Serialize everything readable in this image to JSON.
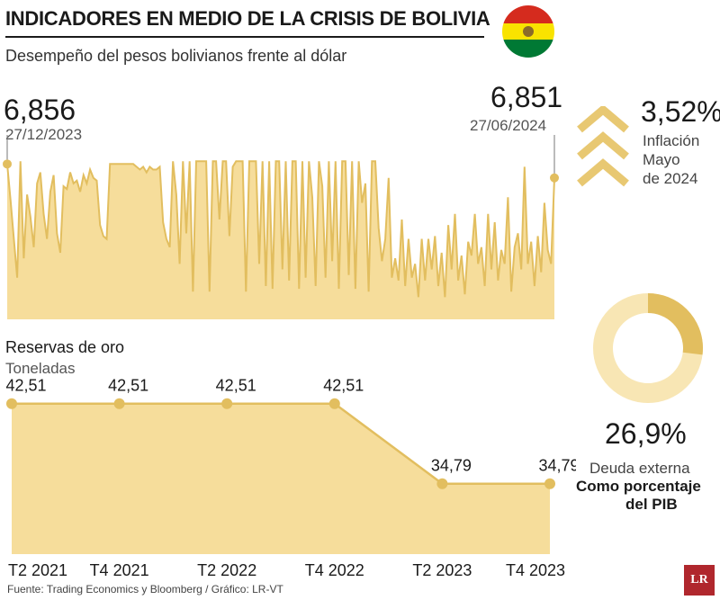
{
  "title": "INDICADORES EN MEDIO DE LA CRISIS DE BOLIVIA",
  "subtitle": "Desempeño del pesos bolivianos frente al dólar",
  "colors": {
    "fill": "#f6dd9b",
    "line": "#e2be5f",
    "dot": "#e2be5f",
    "donut_bg": "#f8e6b4",
    "donut_fg": "#e2be5f",
    "chevron": "#e8c872",
    "flag_red": "#d52b1e",
    "flag_yellow": "#f9e300",
    "flag_green": "#007934"
  },
  "icons": {
    "flag": "bolivia-flag-icon",
    "inflation": "chevron-up-triple-icon",
    "logo": "lr-logo"
  },
  "inflation": {
    "value": "3,52%",
    "label": [
      "Inflación",
      "Mayo",
      "de 2024"
    ]
  },
  "debt": {
    "value": "26,9%",
    "fraction": 0.269,
    "label1": "Deuda externa",
    "label2": "Como porcentaje",
    "label3": "del PIB"
  },
  "source": "Fuente: Trading Economics y Bloomberg / Gráfico: LR-VT",
  "logo_text": "LR",
  "chart_data": [
    {
      "type": "area",
      "title": "Desempeño del pesos bolivianos frente al dólar",
      "start": {
        "value": "6,856",
        "date": "27/12/2023"
      },
      "end": {
        "value": "6,851",
        "date": "27/06/2024"
      },
      "ylim": [
        6.8,
        6.86
      ],
      "values": [
        6.856,
        6.843,
        6.829,
        6.815,
        6.857,
        6.822,
        6.845,
        6.837,
        6.826,
        6.849,
        6.853,
        6.838,
        6.829,
        6.846,
        6.852,
        6.831,
        6.824,
        6.848,
        6.847,
        6.853,
        6.849,
        6.85,
        6.846,
        6.852,
        6.849,
        6.854,
        6.851,
        6.85,
        6.834,
        6.83,
        6.829,
        6.856,
        6.856,
        6.856,
        6.856,
        6.856,
        6.856,
        6.856,
        6.856,
        6.855,
        6.854,
        6.855,
        6.853,
        6.855,
        6.854,
        6.854,
        6.855,
        6.835,
        6.829,
        6.826,
        6.857,
        6.845,
        6.82,
        6.857,
        6.831,
        6.857,
        6.81,
        6.857,
        6.857,
        6.857,
        6.857,
        6.81,
        6.857,
        6.857,
        6.836,
        6.857,
        6.857,
        6.83,
        6.855,
        6.857,
        6.857,
        6.857,
        6.81,
        6.857,
        6.857,
        6.857,
        6.82,
        6.857,
        6.812,
        6.857,
        6.811,
        6.857,
        6.857,
        6.818,
        6.857,
        6.814,
        6.857,
        6.857,
        6.811,
        6.857,
        6.815,
        6.857,
        6.844,
        6.812,
        6.857,
        6.848,
        6.815,
        6.857,
        6.821,
        6.857,
        6.811,
        6.857,
        6.857,
        6.816,
        6.857,
        6.811,
        6.857,
        6.842,
        6.849,
        6.81,
        6.857,
        6.857,
        6.833,
        6.821,
        6.829,
        6.851,
        6.815,
        6.822,
        6.814,
        6.836,
        6.812,
        6.829,
        6.815,
        6.82,
        6.808,
        6.829,
        6.814,
        6.829,
        6.818,
        6.83,
        6.812,
        6.824,
        6.808,
        6.834,
        6.818,
        6.838,
        6.814,
        6.823,
        6.809,
        6.828,
        6.823,
        6.838,
        6.82,
        6.826,
        6.812,
        6.838,
        6.818,
        6.835,
        6.814,
        6.825,
        6.82,
        6.844,
        6.81,
        6.826,
        6.831,
        6.818,
        6.855,
        6.82,
        6.828,
        6.812,
        6.83,
        6.817,
        6.842,
        6.825,
        6.82,
        6.851
      ]
    },
    {
      "type": "area",
      "title": "Reservas de oro",
      "ylabel": "Toneladas",
      "categories": [
        "T2 2021",
        "T4 2021",
        "T2 2022",
        "T4 2022",
        "T2 2023",
        "T4 2023"
      ],
      "values": [
        42.51,
        42.51,
        42.51,
        42.51,
        34.79,
        34.79
      ],
      "labels": [
        "42,51",
        "42,51",
        "42,51",
        "42,51",
        "34,79",
        "34,79"
      ],
      "ylim": [
        28,
        45
      ]
    }
  ]
}
